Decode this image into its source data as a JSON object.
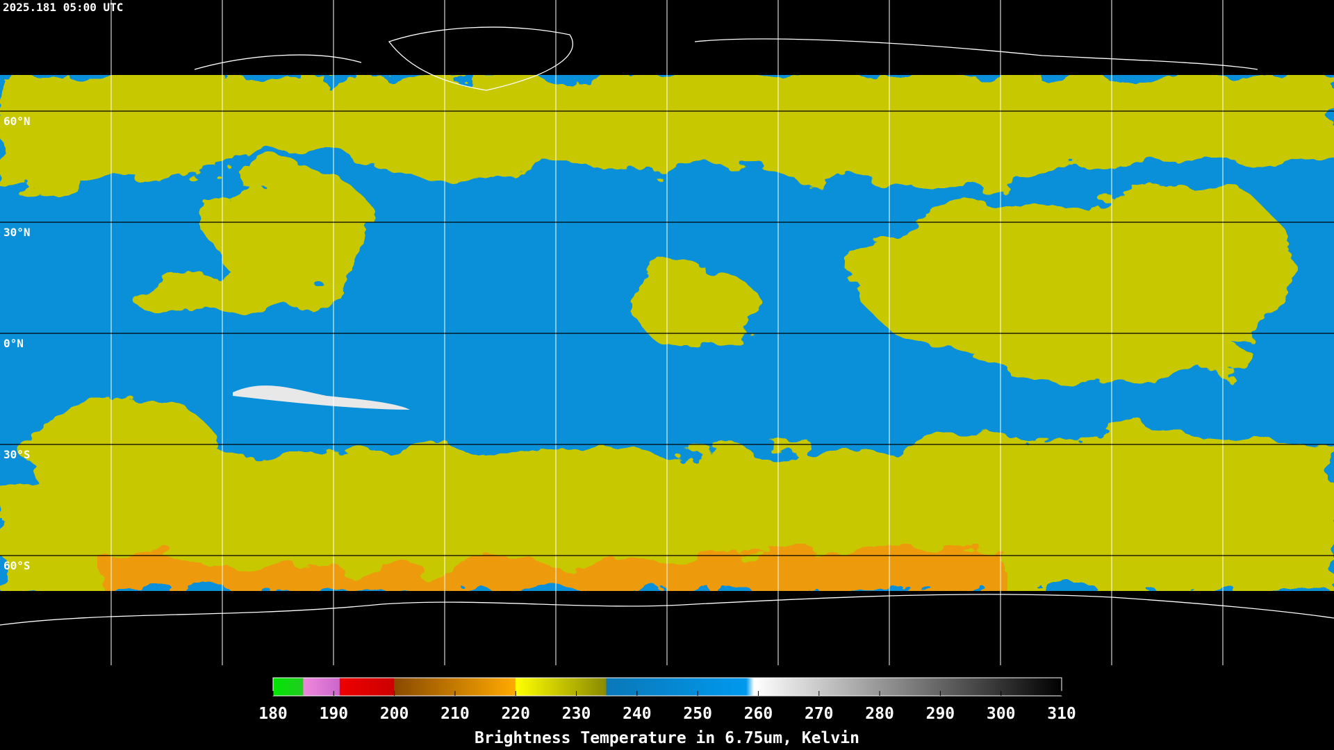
{
  "timestamp": "2025.181 05:00 UTC",
  "lat_labels": [
    "60°N",
    "30°N",
    "0°N",
    "30°S",
    "60°S"
  ],
  "colorbar": {
    "ticks": [
      180,
      190,
      200,
      210,
      220,
      230,
      240,
      250,
      260,
      270,
      280,
      290,
      300,
      310
    ],
    "title": "Brightness Temperature in 6.75um, Kelvin"
  }
}
